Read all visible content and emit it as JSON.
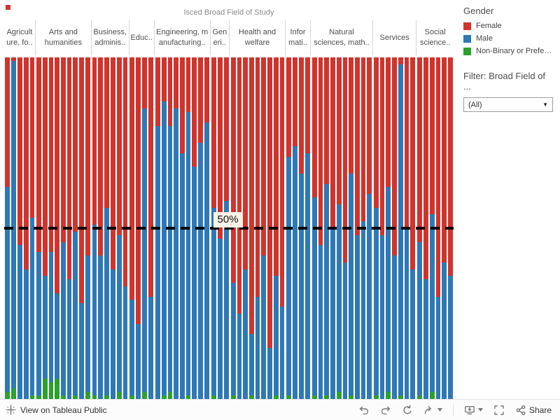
{
  "chart_data": {
    "type": "bar",
    "stacked": true,
    "normalized_percent": true,
    "ylim": [
      0,
      100
    ],
    "grid": false,
    "title": "Isced Broad Field of Study",
    "reference_line": {
      "value": 50,
      "label": "50%"
    },
    "legend": {
      "title": "Gender",
      "position": "right",
      "items": [
        {
          "label": "Female",
          "color": "#d0342c"
        },
        {
          "label": "Male",
          "color": "#2e79b5"
        },
        {
          "label": "Non-Binary or Prefer ..",
          "color": "#2ca12c"
        }
      ]
    },
    "groups": [
      {
        "label": "Agricult\nure, fo..",
        "bars": [
          {
            "female": 38,
            "male": 60,
            "nonbinary": 2
          },
          {
            "female": 1,
            "male": 96,
            "nonbinary": 3
          },
          {
            "female": 55,
            "male": 45,
            "nonbinary": 0
          },
          {
            "female": 62,
            "male": 38,
            "nonbinary": 0
          },
          {
            "female": 47,
            "male": 52,
            "nonbinary": 1
          }
        ]
      },
      {
        "label": "Arts and\nhumanities",
        "bars": [
          {
            "female": 57,
            "male": 42,
            "nonbinary": 1
          },
          {
            "female": 64,
            "male": 30,
            "nonbinary": 6
          },
          {
            "female": 57,
            "male": 38,
            "nonbinary": 5
          },
          {
            "female": 69,
            "male": 25,
            "nonbinary": 6
          },
          {
            "female": 54,
            "male": 45,
            "nonbinary": 1
          },
          {
            "female": 65,
            "male": 35,
            "nonbinary": 0
          },
          {
            "female": 51,
            "male": 48,
            "nonbinary": 1
          },
          {
            "female": 72,
            "male": 28,
            "nonbinary": 0
          },
          {
            "female": 58,
            "male": 40,
            "nonbinary": 2
          }
        ]
      },
      {
        "label": "Business,\nadminis..",
        "bars": [
          {
            "female": 49,
            "male": 50,
            "nonbinary": 1
          },
          {
            "female": 58,
            "male": 42,
            "nonbinary": 0
          },
          {
            "female": 44,
            "male": 55,
            "nonbinary": 1
          },
          {
            "female": 62,
            "male": 38,
            "nonbinary": 0
          },
          {
            "female": 52,
            "male": 46,
            "nonbinary": 2
          },
          {
            "female": 67,
            "male": 33,
            "nonbinary": 0
          }
        ]
      },
      {
        "label": "Educ..",
        "bars": [
          {
            "female": 71,
            "male": 28,
            "nonbinary": 1
          },
          {
            "female": 78,
            "male": 22,
            "nonbinary": 0
          },
          {
            "female": 15,
            "male": 83,
            "nonbinary": 2
          },
          {
            "female": 70,
            "male": 30,
            "nonbinary": 0
          }
        ]
      },
      {
        "label": "Engineering, m\nanufacturing..",
        "bars": [
          {
            "female": 20,
            "male": 80,
            "nonbinary": 0
          },
          {
            "female": 13,
            "male": 86,
            "nonbinary": 1
          },
          {
            "female": 20,
            "male": 78,
            "nonbinary": 2
          },
          {
            "female": 15,
            "male": 85,
            "nonbinary": 0
          },
          {
            "female": 28,
            "male": 72,
            "nonbinary": 0
          },
          {
            "female": 16,
            "male": 83,
            "nonbinary": 1
          },
          {
            "female": 32,
            "male": 68,
            "nonbinary": 0
          },
          {
            "female": 25,
            "male": 75,
            "nonbinary": 0
          },
          {
            "female": 19,
            "male": 81,
            "nonbinary": 0
          }
        ]
      },
      {
        "label": "Gen\neri..",
        "bars": [
          {
            "female": 44,
            "male": 55,
            "nonbinary": 1
          },
          {
            "female": 53,
            "male": 47,
            "nonbinary": 0
          },
          {
            "female": 42,
            "male": 58,
            "nonbinary": 0
          }
        ]
      },
      {
        "label": "Health and\nwelfare",
        "bars": [
          {
            "female": 66,
            "male": 33,
            "nonbinary": 1
          },
          {
            "female": 75,
            "male": 25,
            "nonbinary": 0
          },
          {
            "female": 62,
            "male": 38,
            "nonbinary": 0
          },
          {
            "female": 81,
            "male": 18,
            "nonbinary": 1
          },
          {
            "female": 70,
            "male": 30,
            "nonbinary": 0
          },
          {
            "female": 58,
            "male": 42,
            "nonbinary": 0
          },
          {
            "female": 85,
            "male": 15,
            "nonbinary": 0
          },
          {
            "female": 64,
            "male": 35,
            "nonbinary": 1
          },
          {
            "female": 73,
            "male": 27,
            "nonbinary": 0
          }
        ]
      },
      {
        "label": "Infor\nmati..",
        "bars": [
          {
            "female": 29,
            "male": 70,
            "nonbinary": 1
          },
          {
            "female": 26,
            "male": 74,
            "nonbinary": 0
          },
          {
            "female": 34,
            "male": 66,
            "nonbinary": 0
          },
          {
            "female": 28,
            "male": 72,
            "nonbinary": 0
          }
        ]
      },
      {
        "label": "Natural\nsciences, math..",
        "bars": [
          {
            "female": 41,
            "male": 58,
            "nonbinary": 1
          },
          {
            "female": 55,
            "male": 45,
            "nonbinary": 0
          },
          {
            "female": 37,
            "male": 62,
            "nonbinary": 1
          },
          {
            "female": 50,
            "male": 50,
            "nonbinary": 0
          },
          {
            "female": 43,
            "male": 55,
            "nonbinary": 2
          },
          {
            "female": 60,
            "male": 40,
            "nonbinary": 0
          },
          {
            "female": 34,
            "male": 65,
            "nonbinary": 1
          },
          {
            "female": 52,
            "male": 48,
            "nonbinary": 0
          },
          {
            "female": 48,
            "male": 52,
            "nonbinary": 0
          },
          {
            "female": 40,
            "male": 60,
            "nonbinary": 0
          }
        ]
      },
      {
        "label": "Services",
        "bars": [
          {
            "female": 44,
            "male": 55,
            "nonbinary": 1
          },
          {
            "female": 52,
            "male": 48,
            "nonbinary": 0
          },
          {
            "female": 38,
            "male": 60,
            "nonbinary": 2
          },
          {
            "female": 58,
            "male": 42,
            "nonbinary": 0
          },
          {
            "female": 2,
            "male": 97,
            "nonbinary": 1
          },
          {
            "female": 50,
            "male": 50,
            "nonbinary": 0
          },
          {
            "female": 62,
            "male": 38,
            "nonbinary": 0
          }
        ]
      },
      {
        "label": "Social\nscience..",
        "bars": [
          {
            "female": 54,
            "male": 45,
            "nonbinary": 1
          },
          {
            "female": 65,
            "male": 35,
            "nonbinary": 0
          },
          {
            "female": 46,
            "male": 52,
            "nonbinary": 2
          },
          {
            "female": 70,
            "male": 30,
            "nonbinary": 0
          },
          {
            "female": 60,
            "male": 40,
            "nonbinary": 0
          },
          {
            "female": 64,
            "male": 36,
            "nonbinary": 0
          }
        ]
      }
    ]
  },
  "filter": {
    "title": "Filter: Broad Field of ...",
    "value": "(All)"
  },
  "toolbar": {
    "view_label": "View on Tableau Public",
    "share_label": "Share"
  }
}
